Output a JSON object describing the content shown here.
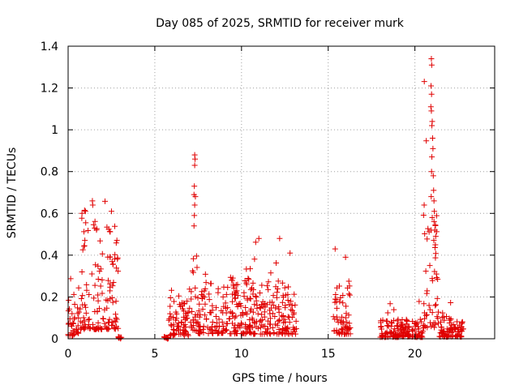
{
  "chart_data": {
    "type": "scatter",
    "title": "Day 085 of 2025, SRMTID for receiver murk",
    "xlabel": "GPS time / hours",
    "ylabel": "SRMTID / TECUs",
    "xlim": [
      0,
      24.6
    ],
    "ylim": [
      0,
      1.4
    ],
    "xticks": [
      0,
      5,
      10,
      15,
      20
    ],
    "xtick_labels": [
      "0",
      "5",
      "10",
      "15",
      "20"
    ],
    "yticks": [
      0,
      0.2,
      0.4,
      0.6,
      0.8,
      1.0,
      1.2,
      1.4
    ],
    "ytick_labels": [
      "0",
      "0.2",
      "0.4",
      "0.6",
      "0.8",
      "1",
      "1.2",
      "1.4"
    ],
    "grid": true,
    "marker": "+",
    "color": "#e00000",
    "series": [
      {
        "name": "SRMTID",
        "segments": [
          {
            "t_start": 0.0,
            "t_end": 0.6,
            "typ": 0.1,
            "max": 0.35
          },
          {
            "t_start": 0.6,
            "t_end": 2.9,
            "typ": 0.3,
            "max": 0.66
          },
          {
            "t_start": 2.9,
            "t_end": 3.1,
            "typ": 0.0,
            "max": 0.01
          },
          {
            "t_start": 5.5,
            "t_end": 5.8,
            "typ": 0.0,
            "max": 0.01
          },
          {
            "t_start": 5.8,
            "t_end": 7.0,
            "typ": 0.1,
            "max": 0.34
          },
          {
            "t_start": 7.0,
            "t_end": 7.5,
            "typ": 0.25,
            "max": 0.88
          },
          {
            "t_start": 7.5,
            "t_end": 10.5,
            "typ": 0.16,
            "max": 0.35
          },
          {
            "t_start": 10.5,
            "t_end": 13.2,
            "typ": 0.15,
            "max": 0.48
          },
          {
            "t_start": 15.3,
            "t_end": 16.3,
            "typ": 0.15,
            "max": 0.43
          },
          {
            "t_start": 18.0,
            "t_end": 20.5,
            "typ": 0.05,
            "max": 0.19
          },
          {
            "t_start": 20.5,
            "t_end": 21.4,
            "typ": 0.35,
            "max": 1.34
          },
          {
            "t_start": 21.4,
            "t_end": 22.8,
            "typ": 0.06,
            "max": 0.19
          }
        ],
        "spikes": [
          {
            "x": 7.3,
            "y": 0.88
          },
          {
            "x": 7.32,
            "y": 0.86
          },
          {
            "x": 7.3,
            "y": 0.83
          },
          {
            "x": 7.28,
            "y": 0.73
          },
          {
            "x": 7.26,
            "y": 0.69
          },
          {
            "x": 7.34,
            "y": 0.68
          },
          {
            "x": 7.3,
            "y": 0.64
          },
          {
            "x": 7.28,
            "y": 0.59
          },
          {
            "x": 7.26,
            "y": 0.54
          },
          {
            "x": 1.4,
            "y": 0.66
          },
          {
            "x": 1.42,
            "y": 0.64
          },
          {
            "x": 1.0,
            "y": 0.61
          },
          {
            "x": 2.5,
            "y": 0.61
          },
          {
            "x": 0.8,
            "y": 0.6
          },
          {
            "x": 20.95,
            "y": 1.34
          },
          {
            "x": 20.97,
            "y": 1.31
          },
          {
            "x": 20.93,
            "y": 1.21
          },
          {
            "x": 20.96,
            "y": 1.17
          },
          {
            "x": 20.92,
            "y": 1.11
          },
          {
            "x": 20.95,
            "y": 1.09
          },
          {
            "x": 21.0,
            "y": 1.04
          },
          {
            "x": 20.98,
            "y": 1.02
          },
          {
            "x": 21.02,
            "y": 0.96
          },
          {
            "x": 21.04,
            "y": 0.91
          },
          {
            "x": 20.98,
            "y": 0.87
          },
          {
            "x": 20.96,
            "y": 0.8
          },
          {
            "x": 21.06,
            "y": 0.78
          },
          {
            "x": 21.08,
            "y": 0.71
          },
          {
            "x": 20.94,
            "y": 0.68
          },
          {
            "x": 21.1,
            "y": 0.66
          },
          {
            "x": 21.12,
            "y": 0.61
          },
          {
            "x": 21.0,
            "y": 0.58
          },
          {
            "x": 21.15,
            "y": 0.52
          },
          {
            "x": 21.2,
            "y": 0.49
          },
          {
            "x": 21.18,
            "y": 0.45
          },
          {
            "x": 11.0,
            "y": 0.48
          },
          {
            "x": 12.2,
            "y": 0.48
          },
          {
            "x": 15.4,
            "y": 0.43
          },
          {
            "x": 16.0,
            "y": 0.39
          },
          {
            "x": 12.8,
            "y": 0.41
          }
        ]
      }
    ]
  }
}
